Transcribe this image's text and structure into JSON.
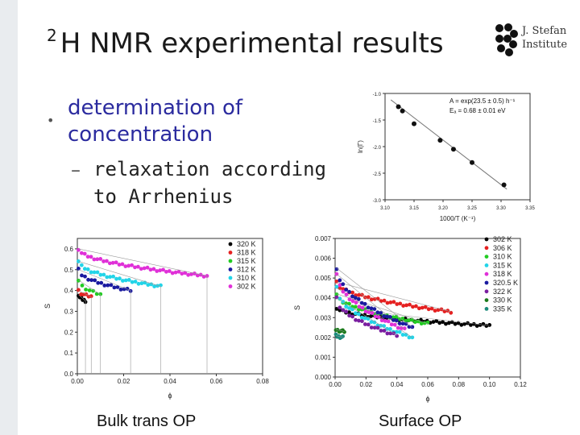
{
  "slide": {
    "title_sup": "2",
    "title_main": "H NMR experimental results",
    "logo_text": [
      "J. Stefan",
      "Institute"
    ],
    "bullet": "determination of concentration",
    "sub_bullet": "relaxation according to Arrhenius",
    "caption_left": "Bulk trans OP",
    "caption_right": "Surface OP"
  },
  "chart_data": [
    {
      "type": "scatter",
      "name": "arrhenius",
      "xlabel": "1000/T (K⁻¹)",
      "ylabel": "ln(Γ)",
      "xlim": [
        3.1,
        3.35
      ],
      "ylim": [
        -3.0,
        -1.0
      ],
      "xticks": [
        "3.10",
        "3.15",
        "3.20",
        "3.25",
        "3.30",
        "3.35"
      ],
      "yticks": [
        "-1.0",
        "-1.5",
        "-2.0",
        "-2.5",
        "-3.0"
      ],
      "annotation": [
        "A = exp(23.5 ± 0.5) h⁻¹",
        "Eₐ = 0.68 ± 0.01 eV"
      ],
      "points": [
        [
          3.123,
          -1.25
        ],
        [
          3.13,
          -1.33
        ],
        [
          3.15,
          -1.57
        ],
        [
          3.195,
          -1.88
        ],
        [
          3.218,
          -2.05
        ],
        [
          3.25,
          -2.3
        ],
        [
          3.305,
          -2.72
        ]
      ],
      "fit": [
        [
          3.11,
          -1.12
        ],
        [
          3.31,
          -2.8
        ]
      ]
    },
    {
      "type": "scatter",
      "name": "bulk",
      "xlabel": "ϕ",
      "ylabel": "S",
      "xlim": [
        0.0,
        0.08
      ],
      "ylim": [
        0.0,
        0.65
      ],
      "xticks": [
        "0.00",
        "0.02",
        "0.04",
        "0.06",
        "0.08"
      ],
      "yticks": [
        "0.0",
        "0.1",
        "0.2",
        "0.3",
        "0.4",
        "0.5",
        "0.6"
      ],
      "series": [
        {
          "name": "320 K",
          "color": "#000000",
          "start": 0.38,
          "end": 0.35,
          "x0": 0.0005,
          "x1": 0.0035
        },
        {
          "name": "318 K",
          "color": "#e52121",
          "start": 0.4,
          "end": 0.37,
          "x0": 0.0005,
          "x1": 0.006
        },
        {
          "name": "315 K",
          "color": "#22cc22",
          "start": 0.45,
          "end": 0.38,
          "x0": 0.0005,
          "x1": 0.01
        },
        {
          "name": "312 K",
          "color": "#1a1aa0",
          "start": 0.5,
          "end": 0.4,
          "x0": 0.0005,
          "x1": 0.023
        },
        {
          "name": "310 K",
          "color": "#22d4e8",
          "start": 0.54,
          "end": 0.42,
          "x0": 0.0005,
          "x1": 0.036
        },
        {
          "name": "302 K",
          "color": "#e030d8",
          "start": 0.6,
          "end": 0.47,
          "x0": 0.0005,
          "x1": 0.056
        }
      ]
    },
    {
      "type": "scatter",
      "name": "surface",
      "xlabel": "ϕ",
      "ylabel": "S",
      "xlim": [
        0.0,
        0.12
      ],
      "ylim": [
        0.0,
        0.007
      ],
      "xticks": [
        "0.00",
        "0.02",
        "0.04",
        "0.06",
        "0.08",
        "0.10",
        "0.12"
      ],
      "yticks": [
        "0.000",
        "0.001",
        "0.002",
        "0.003",
        "0.004",
        "0.005",
        "0.006",
        "0.007"
      ],
      "series": [
        {
          "name": "302 K",
          "color": "#000000",
          "start": 0.0035,
          "end": 0.0026,
          "x0": 0.001,
          "x1": 0.1
        },
        {
          "name": "306 K",
          "color": "#e52121",
          "start": 0.0048,
          "end": 0.0033,
          "x0": 0.001,
          "x1": 0.075
        },
        {
          "name": "310 K",
          "color": "#22cc22",
          "start": 0.0042,
          "end": 0.0027,
          "x0": 0.001,
          "x1": 0.06
        },
        {
          "name": "315 K",
          "color": "#22d4e8",
          "start": 0.0045,
          "end": 0.002,
          "x0": 0.001,
          "x1": 0.05
        },
        {
          "name": "318 K",
          "color": "#e030d8",
          "start": 0.0052,
          "end": 0.0024,
          "x0": 0.001,
          "x1": 0.045
        },
        {
          "name": "320.5 K",
          "color": "#1a1aa0",
          "start": 0.0055,
          "end": 0.0025,
          "x0": 0.001,
          "x1": 0.05
        },
        {
          "name": "322 K",
          "color": "#7a1ea0",
          "start": 0.004,
          "end": 0.0021,
          "x0": 0.001,
          "x1": 0.04
        },
        {
          "name": "330 K",
          "color": "#1a7a1a",
          "start": 0.0024,
          "end": 0.0023,
          "x0": 0.0005,
          "x1": 0.006
        },
        {
          "name": "335 K",
          "color": "#1a8a7a",
          "start": 0.0021,
          "end": 0.002,
          "x0": 0.0005,
          "x1": 0.005
        }
      ]
    }
  ]
}
